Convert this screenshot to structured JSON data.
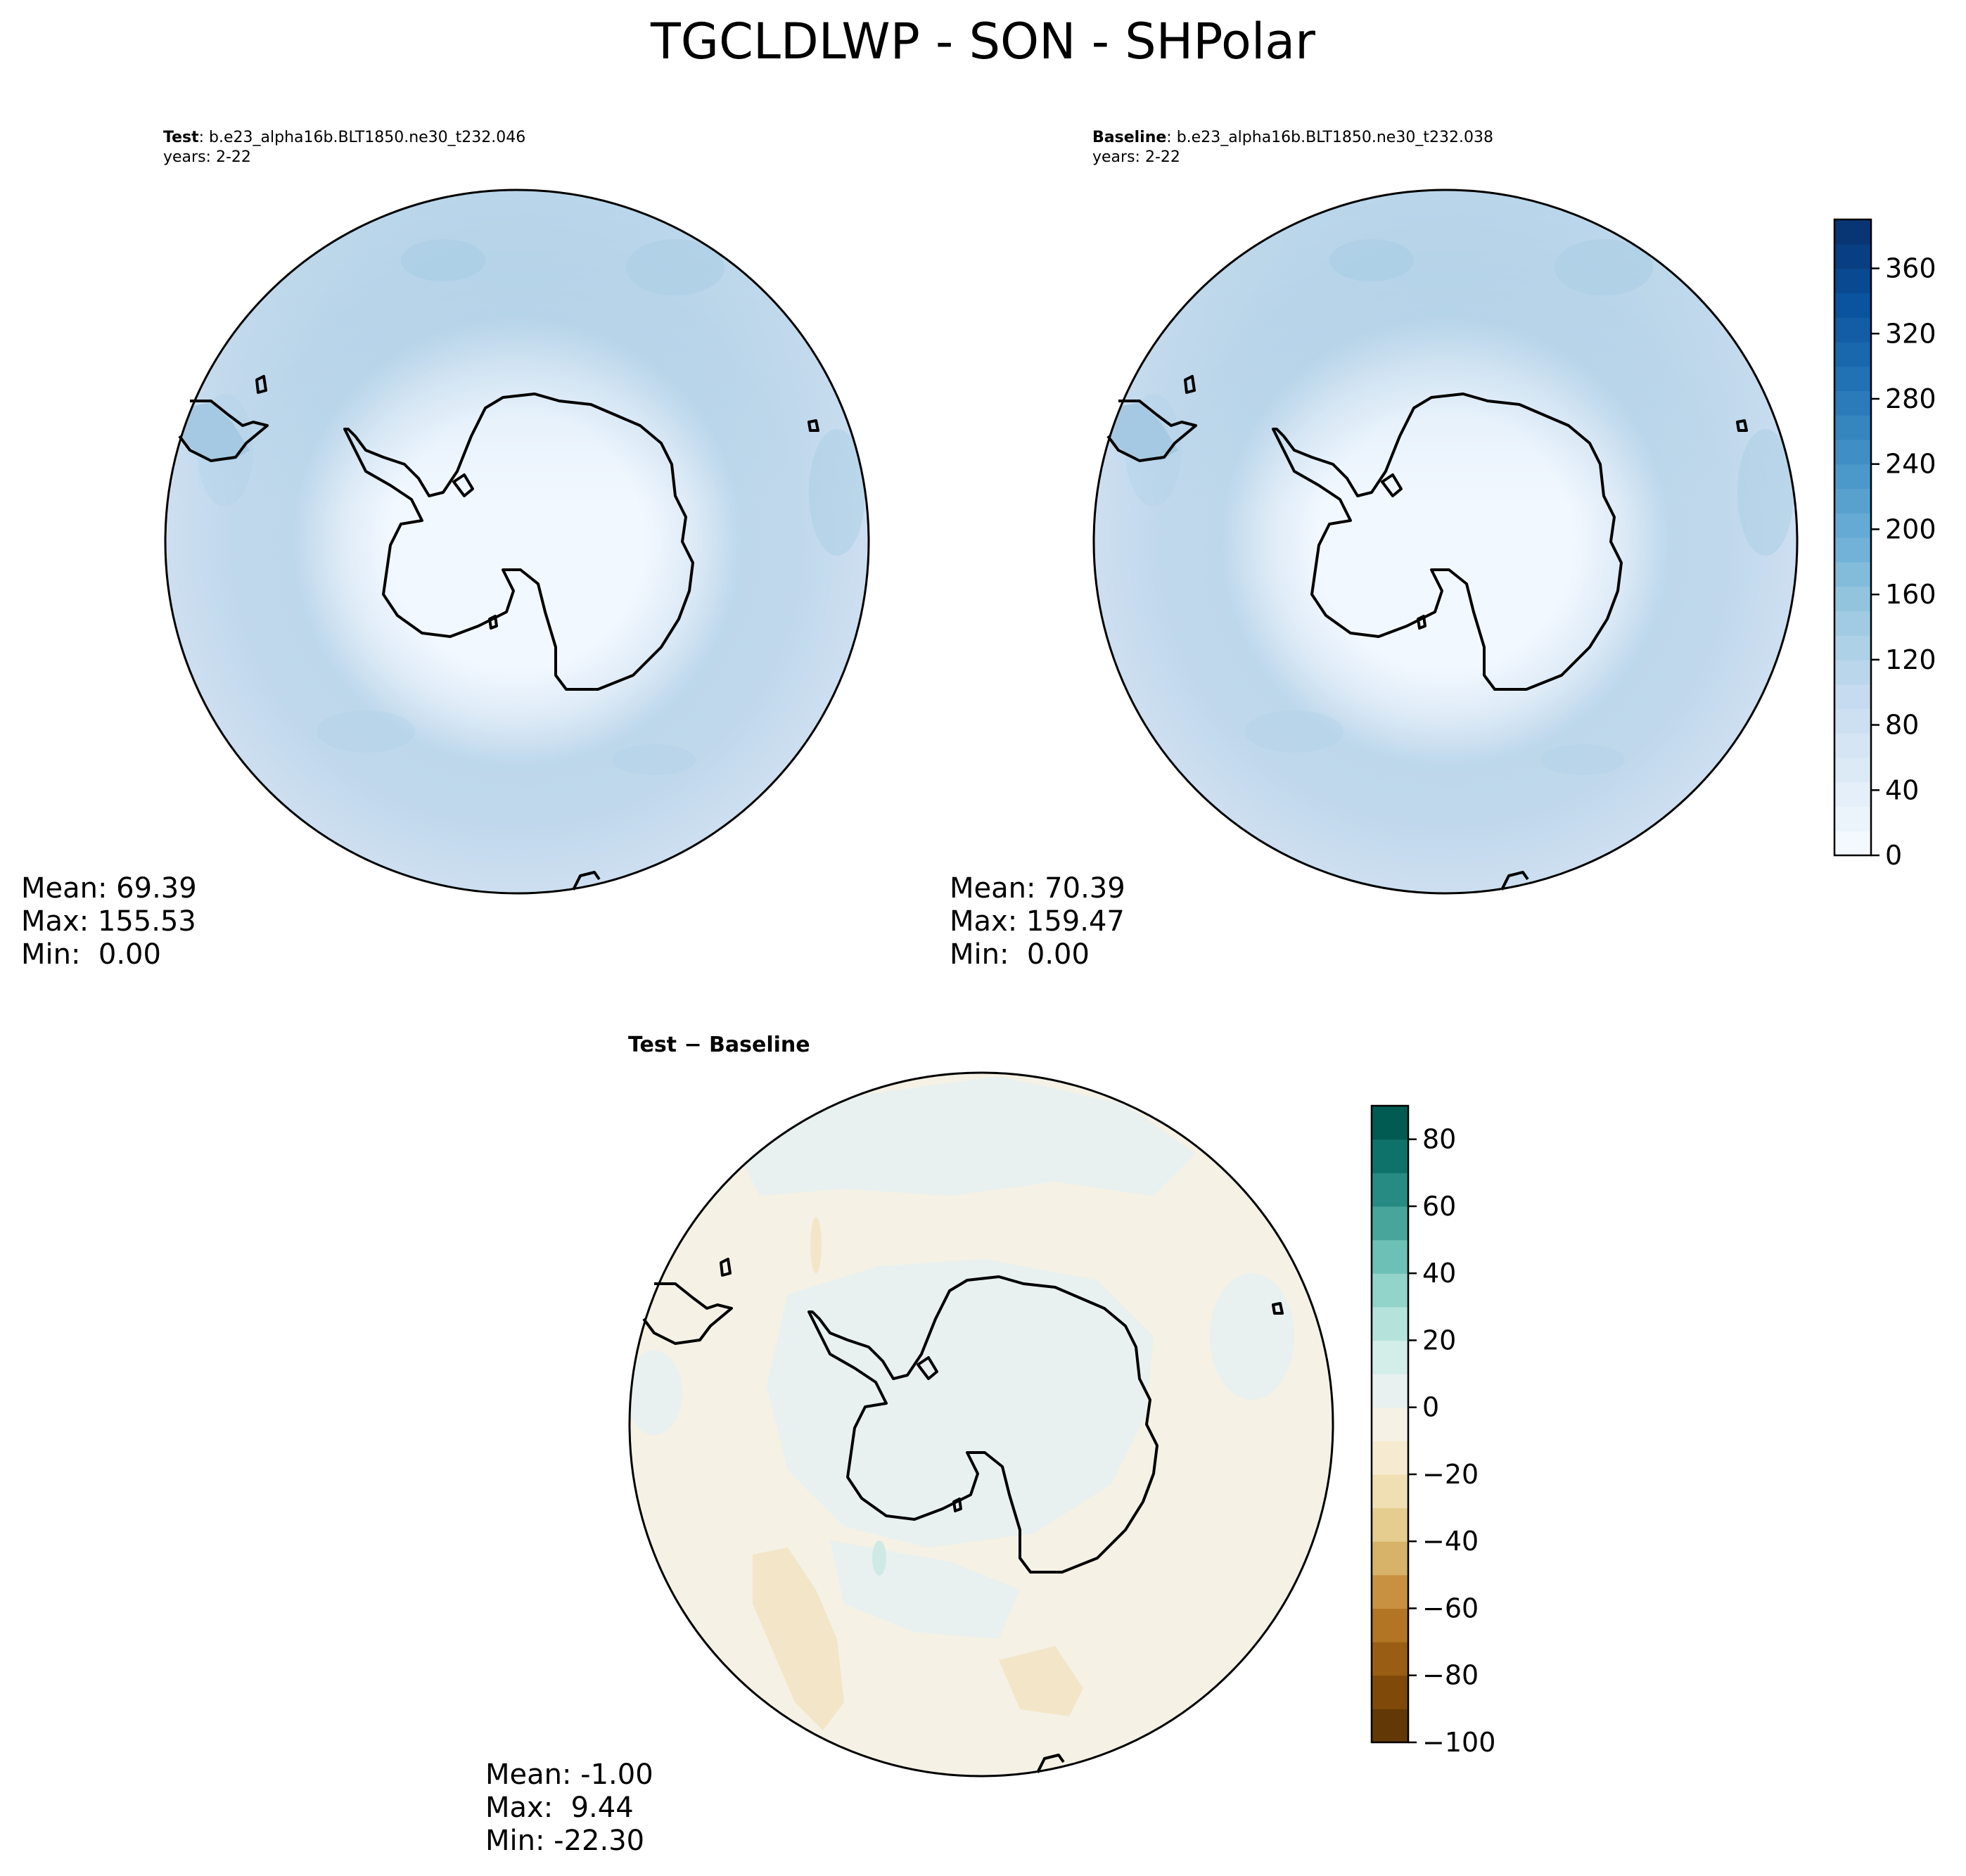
{
  "figure": {
    "suptitle": "TGCLDLWP - SON - SHPolar"
  },
  "panels": {
    "test": {
      "label": "Test",
      "case": ": b.e23_alpha16b.BLT1850.ne30_t232.046",
      "years": "years: 2-22",
      "stats": {
        "mean": "Mean: 69.39",
        "max": "Max: 155.53",
        "min": "Min:  0.00"
      }
    },
    "baseline": {
      "label": "Baseline",
      "case": ": b.e23_alpha16b.BLT1850.ne30_t232.038",
      "years": "years: 2-22",
      "stats": {
        "mean": "Mean: 70.39",
        "max": "Max: 159.47",
        "min": "Min:  0.00"
      }
    },
    "diff": {
      "title": "Test − Baseline",
      "stats": {
        "mean": "Mean: -1.00",
        "max": "Max:  9.44",
        "min": "Min: -22.30"
      }
    }
  },
  "chart_data": [
    {
      "type": "heatmap",
      "panel": "test",
      "projection": "south-polar-stereographic",
      "mean": 69.39,
      "max": 155.53,
      "min": 0.0,
      "colormap": "Blues",
      "colorbar": {
        "ticks": [
          0,
          40,
          80,
          120,
          160,
          200,
          240,
          280,
          320,
          360
        ],
        "range": [
          0,
          390
        ],
        "shared_with": "baseline"
      },
      "colors": {
        "continent": "#f2f8ff",
        "ocean": "#c6dbef",
        "ocean_dark": "#a9cde4"
      }
    },
    {
      "type": "heatmap",
      "panel": "baseline",
      "projection": "south-polar-stereographic",
      "mean": 70.39,
      "max": 159.47,
      "min": 0.0,
      "colormap": "Blues",
      "colorbar": {
        "ticks": [
          0,
          40,
          80,
          120,
          160,
          200,
          240,
          280,
          320,
          360
        ],
        "range": [
          0,
          390
        ]
      },
      "colors": {
        "continent": "#f2f8ff",
        "ocean": "#c6dbef",
        "ocean_dark": "#a9cde4"
      }
    },
    {
      "type": "heatmap",
      "panel": "diff",
      "projection": "south-polar-stereographic",
      "mean": -1.0,
      "max": 9.44,
      "min": -22.3,
      "colormap": "BrBG",
      "colorbar": {
        "ticks": [
          -100,
          -80,
          -60,
          -40,
          -20,
          0,
          20,
          40,
          60,
          80
        ],
        "tick_labels": [
          "−100",
          "−80",
          "−60",
          "−40",
          "−20",
          "0",
          "20",
          "40",
          "60",
          "80"
        ],
        "range": [
          -100,
          90
        ]
      },
      "colors": {
        "neutral_pos": "#e8f1f0",
        "neutral_neg": "#f5f1e5",
        "neg_patch": "#f3e6c8",
        "pos_patch": "#cfe9e4"
      }
    }
  ]
}
